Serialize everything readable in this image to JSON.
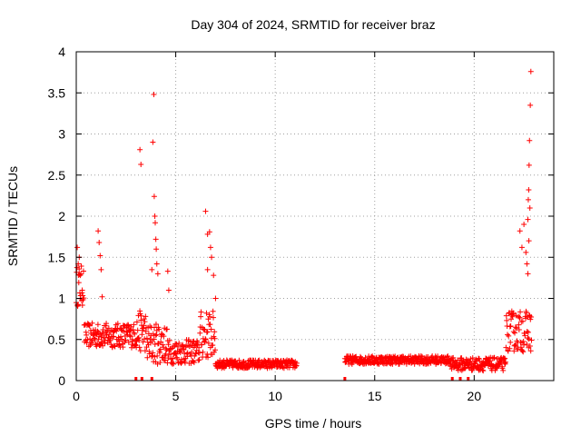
{
  "chart_data": {
    "type": "scatter",
    "title": "Day 304 of 2024, SRMTID for receiver braz",
    "xlabel": "GPS time / hours",
    "ylabel": "SRMTID / TECUs",
    "xlim": [
      0,
      24
    ],
    "ylim": [
      0,
      4
    ],
    "xticks": [
      0,
      5,
      10,
      15,
      20
    ],
    "yticks": [
      0,
      0.5,
      1,
      1.5,
      2,
      2.5,
      3,
      3.5,
      4
    ],
    "ytick_labels": [
      "0",
      "0.5",
      "1",
      "1.5",
      "2",
      "2.5",
      "3",
      "3.5",
      "4"
    ],
    "grid": true,
    "marker": "+",
    "color": "#ff0000",
    "series": [
      {
        "name": "SRMTID",
        "segments": [
          {
            "x_start": 0.0,
            "x_end": 0.4,
            "base": 1.15,
            "spread": 0.25
          },
          {
            "x_start": 0.4,
            "x_end": 3.0,
            "base": 0.55,
            "spread": 0.15
          },
          {
            "x_start": 3.0,
            "x_end": 3.5,
            "base": 0.6,
            "spread": 0.25
          },
          {
            "x_start": 3.5,
            "x_end": 4.6,
            "base": 0.45,
            "spread": 0.25
          },
          {
            "x_start": 4.6,
            "x_end": 6.2,
            "base": 0.35,
            "spread": 0.15
          },
          {
            "x_start": 6.2,
            "x_end": 7.0,
            "base": 0.55,
            "spread": 0.3
          },
          {
            "x_start": 7.0,
            "x_end": 11.1,
            "base": 0.2,
            "spread": 0.05
          },
          {
            "x_start": 13.5,
            "x_end": 18.8,
            "base": 0.25,
            "spread": 0.05
          },
          {
            "x_start": 18.8,
            "x_end": 21.6,
            "base": 0.2,
            "spread": 0.08
          },
          {
            "x_start": 21.6,
            "x_end": 22.9,
            "base": 0.6,
            "spread": 0.25
          }
        ],
        "points": [
          [
            0.05,
            1.62
          ],
          [
            0.1,
            1.42
          ],
          [
            0.15,
            1.5
          ],
          [
            0.2,
            1.28
          ],
          [
            0.3,
            1.1
          ],
          [
            1.1,
            1.82
          ],
          [
            1.15,
            1.68
          ],
          [
            1.2,
            1.52
          ],
          [
            1.25,
            1.35
          ],
          [
            1.3,
            1.02
          ],
          [
            3.2,
            2.81
          ],
          [
            3.25,
            2.63
          ],
          [
            3.8,
            1.35
          ],
          [
            3.85,
            2.9
          ],
          [
            3.9,
            3.48
          ],
          [
            3.92,
            2.24
          ],
          [
            3.95,
            2.0
          ],
          [
            3.97,
            1.92
          ],
          [
            4.0,
            1.72
          ],
          [
            4.02,
            1.6
          ],
          [
            4.05,
            1.42
          ],
          [
            4.1,
            1.3
          ],
          [
            4.6,
            1.33
          ],
          [
            4.65,
            1.1
          ],
          [
            6.5,
            2.06
          ],
          [
            6.6,
            1.78
          ],
          [
            6.7,
            1.81
          ],
          [
            6.75,
            1.62
          ],
          [
            6.8,
            1.5
          ],
          [
            6.6,
            1.35
          ],
          [
            6.9,
            1.28
          ],
          [
            7.0,
            1.0
          ],
          [
            22.3,
            1.82
          ],
          [
            22.4,
            1.62
          ],
          [
            22.5,
            1.9
          ],
          [
            22.6,
            1.56
          ],
          [
            22.65,
            1.42
          ],
          [
            22.7,
            1.96
          ],
          [
            22.72,
            2.2
          ],
          [
            22.74,
            2.32
          ],
          [
            22.76,
            2.62
          ],
          [
            22.78,
            2.92
          ],
          [
            22.82,
            3.35
          ],
          [
            22.85,
            3.76
          ],
          [
            22.8,
            2.1
          ],
          [
            22.75,
            1.7
          ],
          [
            22.7,
            1.3
          ]
        ],
        "zero_points": [
          3.0,
          3.3,
          3.8,
          13.5,
          18.9,
          19.3,
          19.7
        ]
      }
    ]
  }
}
